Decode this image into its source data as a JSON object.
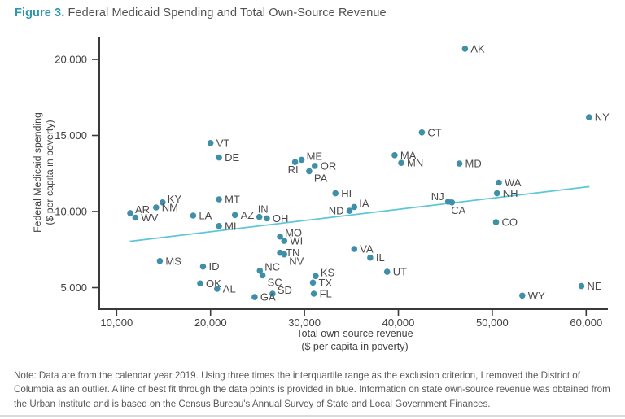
{
  "title": {
    "prefix": "Figure 3.",
    "text": " Federal Medicaid Spending and Total Own-Source Revenue"
  },
  "note": "Note: Data are from the calendar year 2019. Using three times the interquartile range as the exclusion criterion, I removed the District of Columbia as an outlier. A line of best fit through the data points is provided in blue. Information on state own-source revenue was obtained from the Urban Institute and is based on the Census Bureau's Annual Survey of State and Local Government Finances.",
  "axes": {
    "y_label_line1": "Federal Medicaid spending",
    "y_label_line2": "($ per capita in poverty)",
    "x_label_line1": "Total own-source revenue",
    "x_label_line2": "($ per capita in poverty)"
  },
  "colors": {
    "accent_teal": "#2e96ad",
    "dot": "#3f8fa9",
    "trend": "#5fc6d8",
    "axis": "#3a3a3c",
    "label_text": "#4a4a4c",
    "note_gray": "#58595b",
    "divider": "#d9d9d9"
  },
  "chart_data": {
    "type": "scatter",
    "title": "Federal Medicaid Spending and Total Own-Source Revenue",
    "xlabel": "Total own-source revenue ($ per capita in poverty)",
    "ylabel": "Federal Medicaid spending ($ per capita in poverty)",
    "xlim": [
      8200,
      62300
    ],
    "ylim": [
      3500,
      21500
    ],
    "xticks": [
      10000,
      20000,
      30000,
      40000,
      50000,
      60000
    ],
    "yticks": [
      5000,
      10000,
      15000,
      20000
    ],
    "grid": false,
    "legend": "none",
    "trendline": {
      "x1": 11400,
      "y1": 8040,
      "x2": 60350,
      "y2": 11640,
      "style": "line of best fit, blue"
    },
    "points": [
      {
        "state": "AK",
        "x": 47100,
        "y": 20700,
        "lp": "right"
      },
      {
        "state": "NY",
        "x": 60300,
        "y": 16200,
        "lp": "right"
      },
      {
        "state": "CT",
        "x": 42500,
        "y": 15200,
        "lp": "right"
      },
      {
        "state": "VT",
        "x": 20000,
        "y": 14500,
        "lp": "right"
      },
      {
        "state": "MA",
        "x": 39600,
        "y": 13700,
        "lp": "right"
      },
      {
        "state": "DE",
        "x": 20900,
        "y": 13550,
        "lp": "right"
      },
      {
        "state": "ME",
        "x": 29700,
        "y": 13400,
        "lp": "above-right"
      },
      {
        "state": "RI",
        "x": 29000,
        "y": 13250,
        "lp": "below-left"
      },
      {
        "state": "MN",
        "x": 40300,
        "y": 13200,
        "lp": "right"
      },
      {
        "state": "MD",
        "x": 46500,
        "y": 13150,
        "lp": "right"
      },
      {
        "state": "OR",
        "x": 31100,
        "y": 13000,
        "lp": "right"
      },
      {
        "state": "PA",
        "x": 30500,
        "y": 12650,
        "lp": "below-right"
      },
      {
        "state": "WA",
        "x": 50700,
        "y": 11900,
        "lp": "right"
      },
      {
        "state": "NH",
        "x": 50500,
        "y": 11200,
        "lp": "right"
      },
      {
        "state": "HI",
        "x": 33300,
        "y": 11200,
        "lp": "right"
      },
      {
        "state": "MT",
        "x": 20900,
        "y": 10800,
        "lp": "right"
      },
      {
        "state": "NJ",
        "x": 45300,
        "y": 10650,
        "lp": "above-left"
      },
      {
        "state": "KY",
        "x": 14900,
        "y": 10600,
        "lp": "above-right"
      },
      {
        "state": "CA",
        "x": 45700,
        "y": 10600,
        "lp": "below"
      },
      {
        "state": "IA",
        "x": 35300,
        "y": 10300,
        "lp": "above-right"
      },
      {
        "state": "NM",
        "x": 14200,
        "y": 10270,
        "lp": "right"
      },
      {
        "state": "ND",
        "x": 34800,
        "y": 10050,
        "lp": "left"
      },
      {
        "state": "AR",
        "x": 11450,
        "y": 9900,
        "lp": "above-right"
      },
      {
        "state": "AZ",
        "x": 22600,
        "y": 9770,
        "lp": "right"
      },
      {
        "state": "LA",
        "x": 18150,
        "y": 9730,
        "lp": "right"
      },
      {
        "state": "IN",
        "x": 25200,
        "y": 9640,
        "lp": "above"
      },
      {
        "state": "WV",
        "x": 12000,
        "y": 9600,
        "lp": "right"
      },
      {
        "state": "OH",
        "x": 26000,
        "y": 9550,
        "lp": "right"
      },
      {
        "state": "CO",
        "x": 50400,
        "y": 9300,
        "lp": "right"
      },
      {
        "state": "MI",
        "x": 20900,
        "y": 9050,
        "lp": "right"
      },
      {
        "state": "MO",
        "x": 27400,
        "y": 8360,
        "lp": "above-right"
      },
      {
        "state": "WI",
        "x": 27850,
        "y": 8070,
        "lp": "right"
      },
      {
        "state": "VA",
        "x": 35300,
        "y": 7540,
        "lp": "right"
      },
      {
        "state": "TN",
        "x": 27400,
        "y": 7290,
        "lp": "right"
      },
      {
        "state": "NV",
        "x": 27850,
        "y": 7180,
        "lp": "below-right"
      },
      {
        "state": "IL",
        "x": 37000,
        "y": 6970,
        "lp": "right"
      },
      {
        "state": "MS",
        "x": 14600,
        "y": 6750,
        "lp": "right"
      },
      {
        "state": "ID",
        "x": 19200,
        "y": 6380,
        "lp": "right"
      },
      {
        "state": "NC",
        "x": 25250,
        "y": 6110,
        "lp": "above-right"
      },
      {
        "state": "UT",
        "x": 38800,
        "y": 6040,
        "lp": "right"
      },
      {
        "state": "SC",
        "x": 25540,
        "y": 5810,
        "lp": "below-right"
      },
      {
        "state": "KS",
        "x": 31200,
        "y": 5760,
        "lp": "above-right"
      },
      {
        "state": "TX",
        "x": 30900,
        "y": 5330,
        "lp": "right"
      },
      {
        "state": "OK",
        "x": 18900,
        "y": 5280,
        "lp": "right"
      },
      {
        "state": "NE",
        "x": 59500,
        "y": 5100,
        "lp": "right"
      },
      {
        "state": "AL",
        "x": 20700,
        "y": 4920,
        "lp": "right"
      },
      {
        "state": "FL",
        "x": 31000,
        "y": 4600,
        "lp": "right"
      },
      {
        "state": "SD",
        "x": 26600,
        "y": 4600,
        "lp": "above-right"
      },
      {
        "state": "WY",
        "x": 53200,
        "y": 4475,
        "lp": "right"
      },
      {
        "state": "GA",
        "x": 24700,
        "y": 4380,
        "lp": "right"
      }
    ]
  }
}
